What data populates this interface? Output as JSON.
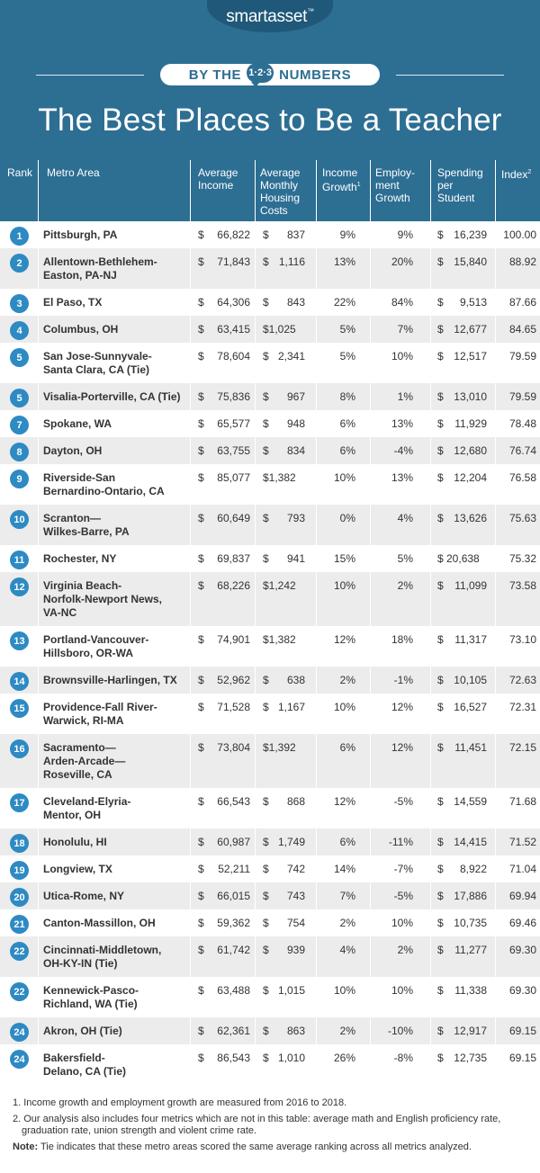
{
  "brand": {
    "logo": "smartasset",
    "logo_tm": "™"
  },
  "banner": {
    "left": "BY THE",
    "icon": "1·2·3",
    "right": "NUMBERS"
  },
  "title": "The Best Places to Be a Teacher",
  "colors": {
    "header_bg": "#2d6e93",
    "badge": "#2d8ac3",
    "stripe": "#ececec"
  },
  "columns": {
    "rank": "Rank",
    "metro": "Metro Area",
    "income": [
      "Average",
      "Income"
    ],
    "housing": [
      "Average",
      "Monthly",
      "Housing",
      "Costs"
    ],
    "income_growth": [
      "Income",
      "Growth"
    ],
    "income_growth_sup": "1",
    "employment": [
      "Employ-",
      "ment",
      "Growth"
    ],
    "spending": [
      "Spending",
      "per",
      "Student"
    ],
    "index": "Index",
    "index_sup": "2"
  },
  "chart_data": {
    "type": "table",
    "title": "The Best Places to Be a Teacher",
    "columns": [
      "Rank",
      "Metro Area",
      "Average Income",
      "Average Monthly Housing Costs",
      "Income Growth",
      "Employment Growth",
      "Spending per Student",
      "Index"
    ],
    "rows": [
      {
        "rank": "1",
        "metro": [
          "Pittsburgh, PA"
        ],
        "income": "66,822",
        "housing": "837",
        "income_growth": "9%",
        "employment_growth": "9%",
        "spending": "16,239",
        "index": "100.00"
      },
      {
        "rank": "2",
        "metro": [
          "Allentown-Bethlehem-",
          "Easton, PA-NJ"
        ],
        "income": "71,843",
        "housing": "1,116",
        "income_growth": "13%",
        "employment_growth": "20%",
        "spending": "15,840",
        "index": "88.92"
      },
      {
        "rank": "3",
        "metro": [
          "El Paso, TX"
        ],
        "income": "64,306",
        "housing": "843",
        "income_growth": "22%",
        "employment_growth": "84%",
        "spending": "9,513",
        "index": "87.66"
      },
      {
        "rank": "4",
        "metro": [
          "Columbus, OH"
        ],
        "income": "63,415",
        "housing": "$1,025",
        "income_growth": "5%",
        "employment_growth": "7%",
        "spending": "12,677",
        "index": "84.65"
      },
      {
        "rank": "5",
        "metro": [
          "San Jose-Sunnyvale-",
          "Santa Clara, CA (Tie)"
        ],
        "income": "78,604",
        "housing": "2,341",
        "income_growth": "5%",
        "employment_growth": "10%",
        "spending": "12,517",
        "index": "79.59"
      },
      {
        "rank": "5",
        "metro": [
          "Visalia-Porterville, CA (Tie)"
        ],
        "income": "75,836",
        "housing": "967",
        "income_growth": "8%",
        "employment_growth": "1%",
        "spending": "13,010",
        "index": "79.59"
      },
      {
        "rank": "7",
        "metro": [
          "Spokane, WA"
        ],
        "income": "65,577",
        "housing": "948",
        "income_growth": "6%",
        "employment_growth": "13%",
        "spending": "11,929",
        "index": "78.48"
      },
      {
        "rank": "8",
        "metro": [
          "Dayton, OH"
        ],
        "income": "63,755",
        "housing": "834",
        "income_growth": "6%",
        "employment_growth": "-4%",
        "spending": "12,680",
        "index": "76.74"
      },
      {
        "rank": "9",
        "metro": [
          "Riverside-San",
          "Bernardino-Ontario, CA"
        ],
        "income": "85,077",
        "housing": "$1,382",
        "income_growth": "10%",
        "employment_growth": "13%",
        "spending": "12,204",
        "index": "76.58"
      },
      {
        "rank": "10",
        "metro": [
          "Scranton—",
          "Wilkes-Barre, PA"
        ],
        "income": "60,649",
        "housing": "793",
        "income_growth": "0%",
        "employment_growth": "4%",
        "spending": "13,626",
        "index": "75.63"
      },
      {
        "rank": "11",
        "metro": [
          "Rochester, NY"
        ],
        "income": "69,837",
        "housing": "941",
        "income_growth": "15%",
        "employment_growth": "5%",
        "spending": "$ 20,638",
        "index": "75.32"
      },
      {
        "rank": "12",
        "metro": [
          "Virginia Beach-",
          "Norfolk-Newport News,",
          "VA-NC"
        ],
        "income": "68,226",
        "housing": "$1,242",
        "income_growth": "10%",
        "employment_growth": "2%",
        "spending": "11,099",
        "index": "73.58"
      },
      {
        "rank": "13",
        "metro": [
          "Portland-Vancouver-",
          "Hillsboro, OR-WA"
        ],
        "income": "74,901",
        "housing": "$1,382",
        "income_growth": "12%",
        "employment_growth": "18%",
        "spending": "11,317",
        "index": "73.10"
      },
      {
        "rank": "14",
        "metro": [
          "Brownsville-Harlingen, TX"
        ],
        "income": "52,962",
        "housing": "638",
        "income_growth": "2%",
        "employment_growth": "-1%",
        "spending": "10,105",
        "index": "72.63"
      },
      {
        "rank": "15",
        "metro": [
          "Providence-Fall River-",
          "Warwick, RI-MA"
        ],
        "income": "71,528",
        "housing": "1,167",
        "income_growth": "10%",
        "employment_growth": "12%",
        "spending": "16,527",
        "index": "72.31"
      },
      {
        "rank": "16",
        "metro": [
          "Sacramento—",
          "Arden-Arcade—",
          "Roseville, CA"
        ],
        "income": "73,804",
        "housing": "$1,392",
        "income_growth": "6%",
        "employment_growth": "12%",
        "spending": "11,451",
        "index": "72.15"
      },
      {
        "rank": "17",
        "metro": [
          "Cleveland-Elyria-",
          "Mentor, OH"
        ],
        "income": "66,543",
        "housing": "868",
        "income_growth": "12%",
        "employment_growth": "-5%",
        "spending": "14,559",
        "index": "71.68"
      },
      {
        "rank": "18",
        "metro": [
          "Honolulu, HI"
        ],
        "income": "60,987",
        "housing": "1,749",
        "income_growth": "6%",
        "employment_growth": "-11%",
        "spending": "14,415",
        "index": "71.52"
      },
      {
        "rank": "19",
        "metro": [
          "Longview, TX"
        ],
        "income": "52,211",
        "housing": "742",
        "income_growth": "14%",
        "employment_growth": "-7%",
        "spending": "8,922",
        "index": "71.04"
      },
      {
        "rank": "20",
        "metro": [
          "Utica-Rome, NY"
        ],
        "income": "66,015",
        "housing": "743",
        "income_growth": "7%",
        "employment_growth": "-5%",
        "spending": "17,886",
        "index": "69.94"
      },
      {
        "rank": "21",
        "metro": [
          "Canton-Massillon, OH"
        ],
        "income": "59,362",
        "housing": "754",
        "income_growth": "2%",
        "employment_growth": "10%",
        "spending": "10,735",
        "index": "69.46"
      },
      {
        "rank": "22",
        "metro": [
          "Cincinnati-Middletown,",
          "OH-KY-IN (Tie)"
        ],
        "income": "61,742",
        "housing": "939",
        "income_growth": "4%",
        "employment_growth": "2%",
        "spending": "11,277",
        "index": "69.30"
      },
      {
        "rank": "22",
        "metro": [
          "Kennewick-Pasco-",
          "Richland, WA (Tie)"
        ],
        "income": "63,488",
        "housing": "1,015",
        "income_growth": "10%",
        "employment_growth": "10%",
        "spending": "11,338",
        "index": "69.30"
      },
      {
        "rank": "24",
        "metro": [
          "Akron, OH (Tie)"
        ],
        "income": "62,361",
        "housing": "863",
        "income_growth": "2%",
        "employment_growth": "-10%",
        "spending": "12,917",
        "index": "69.15"
      },
      {
        "rank": "24",
        "metro": [
          "Bakersfield-",
          "Delano, CA (Tie)"
        ],
        "income": "86,543",
        "housing": "1,010",
        "income_growth": "26%",
        "employment_growth": "-8%",
        "spending": "12,735",
        "index": "69.15"
      }
    ]
  },
  "footnotes": {
    "note1": "1.  Income growth and employment growth are measured from 2016 to 2018.",
    "note2a": "2.  Our analysis also includes four metrics which are not in this table: average math and English proficiency rate,",
    "note2b": "graduation rate, union strength and violent crime rate.",
    "note_label": "Note:",
    "note_text": " Tie indicates that these metro areas scored the same average ranking across all metrics analyzed."
  }
}
